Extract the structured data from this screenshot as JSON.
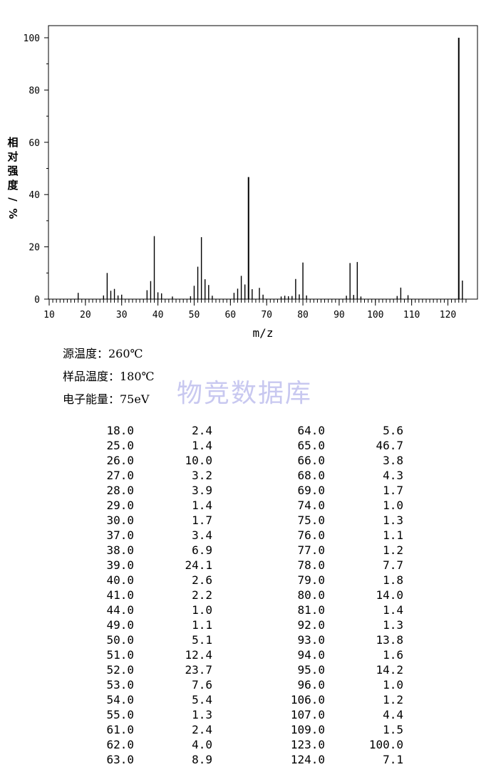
{
  "chart_data": {
    "type": "bar",
    "xlabel": "m/z",
    "ylabel": "相对强度/%",
    "xlim": [
      10,
      126
    ],
    "ylim": [
      0,
      100
    ],
    "x_ticks": [
      10,
      20,
      30,
      40,
      50,
      60,
      70,
      80,
      90,
      100,
      110,
      120
    ],
    "y_ticks": [
      0,
      20,
      40,
      60,
      80,
      100
    ],
    "grid": false,
    "points": [
      {
        "x": 18,
        "y": 2.4
      },
      {
        "x": 25,
        "y": 1.4
      },
      {
        "x": 26,
        "y": 10.0
      },
      {
        "x": 27,
        "y": 3.2
      },
      {
        "x": 28,
        "y": 3.9
      },
      {
        "x": 29,
        "y": 1.4
      },
      {
        "x": 30,
        "y": 1.7
      },
      {
        "x": 37,
        "y": 3.4
      },
      {
        "x": 38,
        "y": 6.9
      },
      {
        "x": 39,
        "y": 24.1
      },
      {
        "x": 40,
        "y": 2.6
      },
      {
        "x": 41,
        "y": 2.2
      },
      {
        "x": 44,
        "y": 1.0
      },
      {
        "x": 49,
        "y": 1.1
      },
      {
        "x": 50,
        "y": 5.1
      },
      {
        "x": 51,
        "y": 12.4
      },
      {
        "x": 52,
        "y": 23.7
      },
      {
        "x": 53,
        "y": 7.6
      },
      {
        "x": 54,
        "y": 5.4
      },
      {
        "x": 55,
        "y": 1.3
      },
      {
        "x": 61,
        "y": 2.4
      },
      {
        "x": 62,
        "y": 4.0
      },
      {
        "x": 63,
        "y": 8.9
      },
      {
        "x": 64,
        "y": 5.6
      },
      {
        "x": 65,
        "y": 46.7
      },
      {
        "x": 66,
        "y": 3.8
      },
      {
        "x": 68,
        "y": 4.3
      },
      {
        "x": 69,
        "y": 1.7
      },
      {
        "x": 74,
        "y": 1.0
      },
      {
        "x": 75,
        "y": 1.3
      },
      {
        "x": 76,
        "y": 1.1
      },
      {
        "x": 77,
        "y": 1.2
      },
      {
        "x": 78,
        "y": 7.7
      },
      {
        "x": 79,
        "y": 1.8
      },
      {
        "x": 80,
        "y": 14.0
      },
      {
        "x": 81,
        "y": 1.4
      },
      {
        "x": 92,
        "y": 1.3
      },
      {
        "x": 93,
        "y": 13.8
      },
      {
        "x": 94,
        "y": 1.6
      },
      {
        "x": 95,
        "y": 14.2
      },
      {
        "x": 96,
        "y": 1.0
      },
      {
        "x": 106,
        "y": 1.2
      },
      {
        "x": 107,
        "y": 4.4
      },
      {
        "x": 109,
        "y": 1.5
      },
      {
        "x": 123,
        "y": 100.0
      },
      {
        "x": 124,
        "y": 7.1
      }
    ]
  },
  "info": {
    "source_temp": "源温度：260℃",
    "sample_temp": "样品温度：180℃",
    "electron_energy": "电子能量：75eV"
  },
  "watermark": "物竞数据库",
  "table": {
    "rows": [
      [
        "18.0",
        "2.4",
        "64.0",
        "5.6"
      ],
      [
        "25.0",
        "1.4",
        "65.0",
        "46.7"
      ],
      [
        "26.0",
        "10.0",
        "66.0",
        "3.8"
      ],
      [
        "27.0",
        "3.2",
        "68.0",
        "4.3"
      ],
      [
        "28.0",
        "3.9",
        "69.0",
        "1.7"
      ],
      [
        "29.0",
        "1.4",
        "74.0",
        "1.0"
      ],
      [
        "30.0",
        "1.7",
        "75.0",
        "1.3"
      ],
      [
        "37.0",
        "3.4",
        "76.0",
        "1.1"
      ],
      [
        "38.0",
        "6.9",
        "77.0",
        "1.2"
      ],
      [
        "39.0",
        "24.1",
        "78.0",
        "7.7"
      ],
      [
        "40.0",
        "2.6",
        "79.0",
        "1.8"
      ],
      [
        "41.0",
        "2.2",
        "80.0",
        "14.0"
      ],
      [
        "44.0",
        "1.0",
        "81.0",
        "1.4"
      ],
      [
        "49.0",
        "1.1",
        "92.0",
        "1.3"
      ],
      [
        "50.0",
        "5.1",
        "93.0",
        "13.8"
      ],
      [
        "51.0",
        "12.4",
        "94.0",
        "1.6"
      ],
      [
        "52.0",
        "23.7",
        "95.0",
        "14.2"
      ],
      [
        "53.0",
        "7.6",
        "96.0",
        "1.0"
      ],
      [
        "54.0",
        "5.4",
        "106.0",
        "1.2"
      ],
      [
        "55.0",
        "1.3",
        "107.0",
        "4.4"
      ],
      [
        "61.0",
        "2.4",
        "109.0",
        "1.5"
      ],
      [
        "62.0",
        "4.0",
        "123.0",
        "100.0"
      ],
      [
        "63.0",
        "8.9",
        "124.0",
        "7.1"
      ]
    ]
  }
}
